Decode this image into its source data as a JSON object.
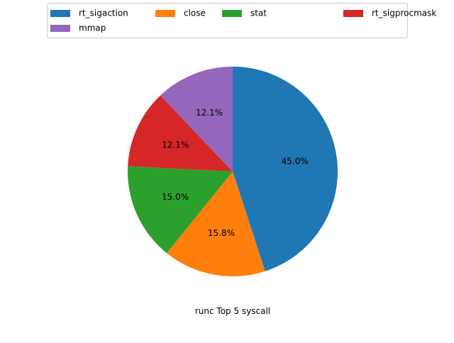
{
  "chart_data": {
    "type": "pie",
    "title": "runc Top 5 syscall",
    "legend_position": "top",
    "legend_columns": 4,
    "start_angle_deg": 90,
    "direction": "clockwise",
    "slices": [
      {
        "label": "rt_sigaction",
        "value": 45.0,
        "pct_label": "45.0%",
        "color": "#1f77b4"
      },
      {
        "label": "close",
        "value": 15.8,
        "pct_label": "15.8%",
        "color": "#ff7f0e"
      },
      {
        "label": "stat",
        "value": 15.0,
        "pct_label": "15.0%",
        "color": "#2ca02c"
      },
      {
        "label": "rt_sigprocmask",
        "value": 12.1,
        "pct_label": "12.1%",
        "color": "#d62728"
      },
      {
        "label": "mmap",
        "value": 12.1,
        "pct_label": "12.1%",
        "color": "#9467bd"
      }
    ]
  }
}
